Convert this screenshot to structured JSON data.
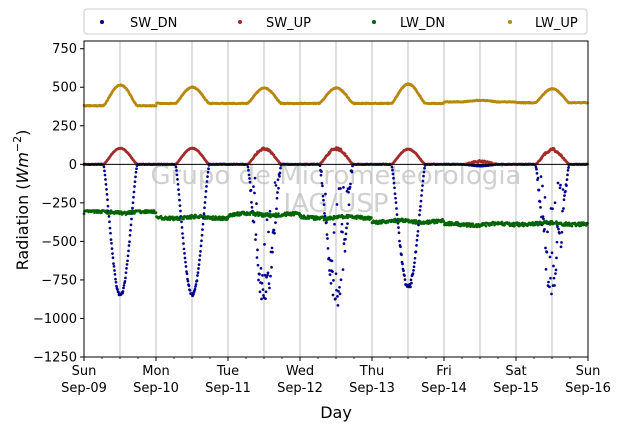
{
  "chart_data": {
    "type": "scatter",
    "xlabel": "Day",
    "ylabel_main": "Radiation (",
    "ylabel_unit": "Wm",
    "ylabel_exp": "−2",
    "ylabel_close": ")",
    "ylim": [
      -1250,
      800
    ],
    "xlim": [
      0,
      7
    ],
    "yticks": [
      750,
      500,
      250,
      0,
      -250,
      -500,
      -750,
      -1000,
      -1250
    ],
    "ytick_labels": [
      "750",
      "500",
      "250",
      "0",
      "−250",
      "−500",
      "−750",
      "−1000",
      "−1250"
    ],
    "xticks": [
      {
        "x": 0,
        "day": "Sun",
        "date": "Sep-09"
      },
      {
        "x": 1,
        "day": "Mon",
        "date": "Sep-10"
      },
      {
        "x": 2,
        "day": "Tue",
        "date": "Sep-11"
      },
      {
        "x": 3,
        "day": "Wed",
        "date": "Sep-12"
      },
      {
        "x": 4,
        "day": "Thu",
        "date": "Sep-13"
      },
      {
        "x": 5,
        "day": "Fri",
        "date": "Sep-14"
      },
      {
        "x": 6,
        "day": "Sat",
        "date": "Sep-15"
      },
      {
        "x": 7,
        "day": "Sun",
        "date": "Sep-16"
      }
    ],
    "grid": "vertical",
    "legend_position": "top",
    "watermark_line1": "Grupo de Micrometeorologia",
    "watermark_line2": "IAG/USP",
    "series": [
      {
        "name": "SW_DN",
        "color": "#00008b",
        "day_peaks": [
          -860,
          -855,
          -940,
          -930,
          -820,
          -10,
          -880
        ],
        "day_noise": [
          0.02,
          0.02,
          0.25,
          0.25,
          0.05,
          0.0,
          0.35
        ]
      },
      {
        "name": "SW_UP",
        "color": "#a52a2a",
        "day_peaks": [
          105,
          105,
          110,
          110,
          100,
          25,
          105
        ],
        "day_noise": [
          0.02,
          0.02,
          0.15,
          0.15,
          0.05,
          0.5,
          0.2
        ]
      },
      {
        "name": "LW_DN",
        "color": "#006400",
        "base": [
          -310,
          -345,
          -325,
          -345,
          -370,
          -390,
          -385
        ],
        "range": [
          -420,
          -300
        ]
      },
      {
        "name": "LW_UP",
        "color": "#b8860b",
        "base": [
          380,
          395,
          395,
          395,
          395,
          405,
          400
        ],
        "day_peaks": [
          515,
          500,
          495,
          495,
          520,
          415,
          490
        ]
      }
    ]
  }
}
